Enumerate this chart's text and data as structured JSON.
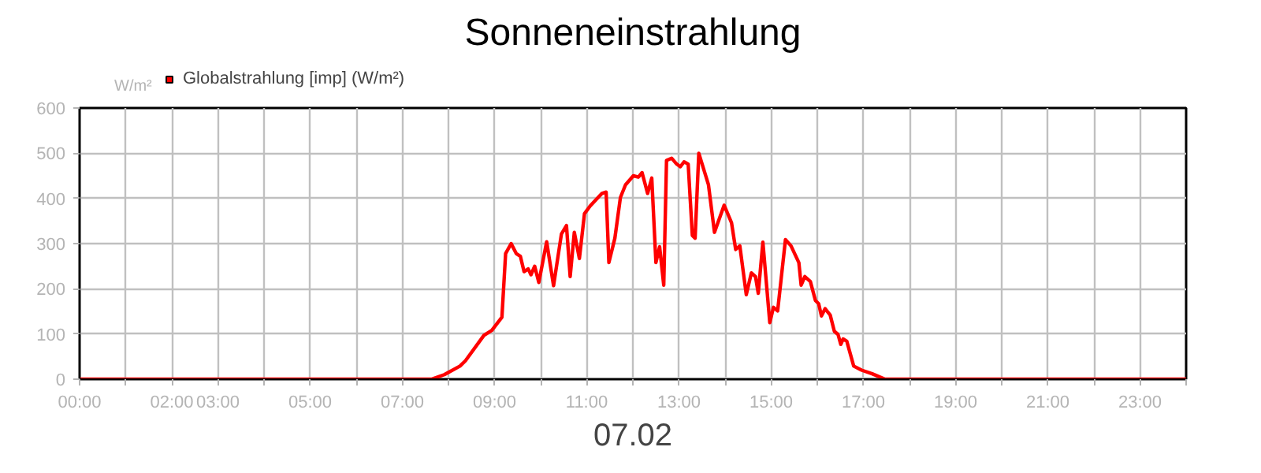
{
  "chart_data": {
    "type": "line",
    "title": "Sonneneinstrahlung",
    "xlabel": "07.02",
    "ylabel": "W/m²",
    "xlim": [
      0,
      24
    ],
    "ylim": [
      0,
      600
    ],
    "yticks": [
      0,
      100,
      200,
      300,
      400,
      500,
      600
    ],
    "xticks": [
      {
        "value": 0,
        "label": "00:00"
      },
      {
        "value": 1,
        "label": null
      },
      {
        "value": 2,
        "label": "02:00"
      },
      {
        "value": 3,
        "label": "03:00"
      },
      {
        "value": 4,
        "label": null
      },
      {
        "value": 5,
        "label": "05:00"
      },
      {
        "value": 6,
        "label": null
      },
      {
        "value": 7,
        "label": "07:00"
      },
      {
        "value": 8,
        "label": null
      },
      {
        "value": 9,
        "label": "09:00"
      },
      {
        "value": 10,
        "label": null
      },
      {
        "value": 11,
        "label": "11:00"
      },
      {
        "value": 12,
        "label": null
      },
      {
        "value": 13,
        "label": "13:00"
      },
      {
        "value": 14,
        "label": null
      },
      {
        "value": 15,
        "label": "15:00"
      },
      {
        "value": 16,
        "label": null
      },
      {
        "value": 17,
        "label": "17:00"
      },
      {
        "value": 18,
        "label": null
      },
      {
        "value": 19,
        "label": "19:00"
      },
      {
        "value": 20,
        "label": null
      },
      {
        "value": 21,
        "label": "21:00"
      },
      {
        "value": 22,
        "label": null
      },
      {
        "value": 23,
        "label": "23:00"
      },
      {
        "value": 24,
        "label": null
      }
    ],
    "grid": true,
    "legend": "top left",
    "marker": "none",
    "line_style": "solid",
    "series": [
      {
        "name": "Globalstrahlung [imp] (W/m²)",
        "color": "#ff0000",
        "x": [
          0,
          7.63,
          7.91,
          8.25,
          8.37,
          8.77,
          8.94,
          9.16,
          9.24,
          9.36,
          9.47,
          9.56,
          9.64,
          9.73,
          9.79,
          9.87,
          9.96,
          10.13,
          10.28,
          10.45,
          10.56,
          10.64,
          10.73,
          10.84,
          10.95,
          11.07,
          11.33,
          11.42,
          11.48,
          11.61,
          11.73,
          11.84,
          12.01,
          12.12,
          12.2,
          12.32,
          12.41,
          12.5,
          12.58,
          12.67,
          12.73,
          12.84,
          12.95,
          13.03,
          13.11,
          13.2,
          13.29,
          13.35,
          13.43,
          13.64,
          13.77,
          13.98,
          14.14,
          14.23,
          14.32,
          14.46,
          14.57,
          14.66,
          14.72,
          14.82,
          14.97,
          15.05,
          15.14,
          15.31,
          15.43,
          15.6,
          15.65,
          15.73,
          15.85,
          15.96,
          16.03,
          16.09,
          16.17,
          16.28,
          16.37,
          16.45,
          16.51,
          16.56,
          16.64,
          16.79,
          16.96,
          17.19,
          17.47,
          24
        ],
        "values": [
          0,
          0,
          10,
          29,
          41,
          97,
          108,
          137,
          278,
          300,
          278,
          272,
          238,
          244,
          231,
          250,
          214,
          304,
          207,
          321,
          340,
          227,
          325,
          267,
          366,
          383,
          411,
          414,
          258,
          312,
          402,
          430,
          450,
          447,
          457,
          411,
          445,
          258,
          293,
          208,
          484,
          489,
          476,
          470,
          481,
          476,
          318,
          312,
          500,
          430,
          325,
          385,
          346,
          287,
          295,
          187,
          235,
          227,
          190,
          303,
          125,
          159,
          151,
          309,
          295,
          258,
          208,
          227,
          216,
          174,
          167,
          140,
          156,
          142,
          106,
          99,
          77,
          89,
          84,
          29,
          20,
          12,
          0,
          0
        ]
      }
    ]
  }
}
